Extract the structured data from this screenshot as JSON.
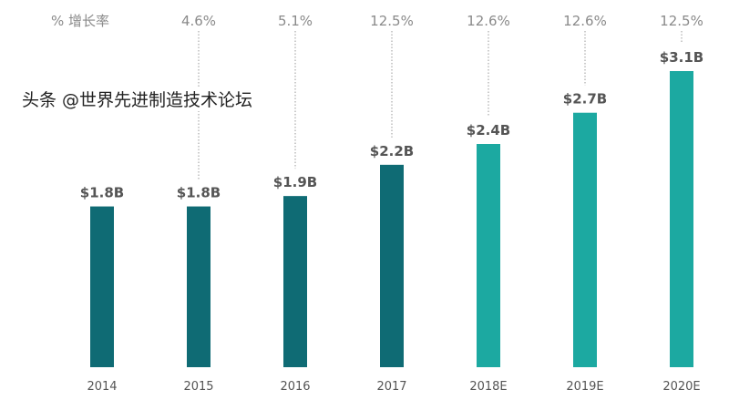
{
  "chart_data": {
    "type": "bar",
    "title": "",
    "xlabel": "",
    "ylabel": "",
    "categories": [
      "2014",
      "2015",
      "2016",
      "2017",
      "2018E",
      "2019E",
      "2020E"
    ],
    "values": [
      1.8,
      1.8,
      1.9,
      2.2,
      2.4,
      2.7,
      3.1
    ],
    "value_labels": [
      "$1.8B",
      "$1.8B",
      "$1.9B",
      "$2.2B",
      "$2.4B",
      "$2.7B",
      "$3.1B"
    ],
    "growth_header": "% 增长率",
    "growth_labels": [
      "",
      "4.6%",
      "5.1%",
      "12.5%",
      "12.6%",
      "12.6%",
      "12.5%"
    ],
    "ylim": [
      0,
      3.2
    ],
    "grid": false,
    "colors": {
      "actual": "#0f6b74",
      "forecast": "#1ca9a1"
    },
    "forecast_from_index": 4
  },
  "watermark": "头条 @世界先进制造技术论坛"
}
